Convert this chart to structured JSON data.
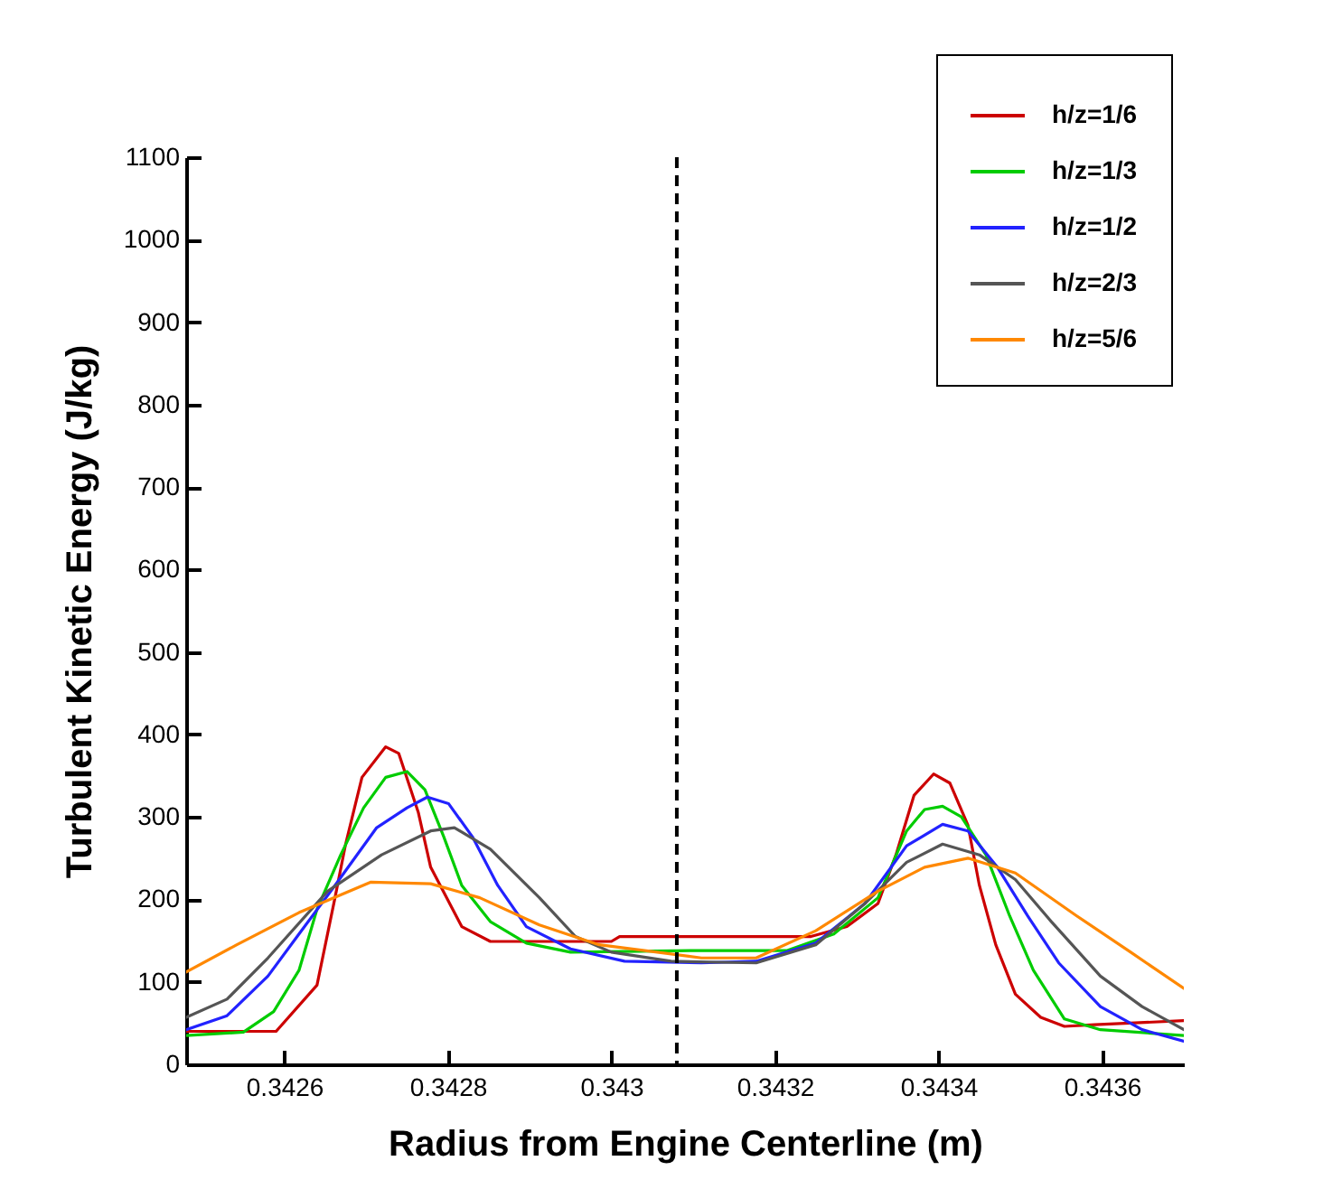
{
  "chart_data": {
    "type": "line",
    "xlabel": "Radius from Engine Centerline (m)",
    "ylabel": "Turbulent Kinetic Energy (J/kg)",
    "xlim": [
      0.34248,
      0.3437
    ],
    "ylim": [
      0,
      1100
    ],
    "xticks": [
      0.3426,
      0.3428,
      0.343,
      0.3432,
      0.3434,
      0.3436
    ],
    "yticks": [
      0,
      100,
      200,
      300,
      400,
      500,
      600,
      700,
      800,
      900,
      1000,
      1100
    ],
    "grid": false,
    "legend": "top right",
    "line_style": "solid",
    "marker": "none",
    "ref_lines": [
      {
        "axis": "x",
        "value": 0.34308,
        "line_style": "dashed",
        "color": "#000000"
      }
    ],
    "series": [
      {
        "name": "h/z=1/6",
        "color": "#cc0000",
        "x": [
          0.34248,
          0.34259,
          0.34264,
          0.342662,
          0.342675,
          0.342695,
          0.342724,
          0.34274,
          0.342764,
          0.342779,
          0.342817,
          0.342852,
          0.343,
          0.34301,
          0.343244,
          0.343288,
          0.343326,
          0.343348,
          0.34337,
          0.343394,
          0.343414,
          0.343436,
          0.34345,
          0.34347,
          0.343494,
          0.343525,
          0.343554,
          0.343591,
          0.3437
        ],
        "values": [
          40,
          40,
          96,
          202,
          267,
          348,
          385,
          377,
          305,
          239,
          167,
          149,
          149,
          155,
          155,
          167,
          195,
          254,
          326,
          352,
          341,
          290,
          217,
          145,
          85,
          57,
          46,
          48,
          53
        ]
      },
      {
        "name": "h/z=1/3",
        "color": "#00cc00",
        "x": [
          0.34248,
          0.34255,
          0.342587,
          0.342618,
          0.34264,
          0.342669,
          0.342697,
          0.342724,
          0.34275,
          0.342772,
          0.342795,
          0.342817,
          0.342852,
          0.342896,
          0.34295,
          0.34311,
          0.343215,
          0.343272,
          0.343326,
          0.343361,
          0.343383,
          0.343405,
          0.343428,
          0.343458,
          0.343487,
          0.343516,
          0.343554,
          0.343598,
          0.3437
        ],
        "values": [
          35,
          39,
          64,
          114,
          188,
          254,
          311,
          348,
          355,
          333,
          276,
          217,
          173,
          147,
          136,
          138,
          138,
          158,
          202,
          283,
          309,
          313,
          300,
          254,
          180,
          114,
          55,
          42,
          35
        ]
      },
      {
        "name": "h/z=1/2",
        "color": "#2222ff",
        "x": [
          0.34248,
          0.34253,
          0.34258,
          0.342618,
          0.342662,
          0.342713,
          0.34275,
          0.342775,
          0.342801,
          0.34283,
          0.342861,
          0.342896,
          0.34295,
          0.343016,
          0.34311,
          0.343177,
          0.34325,
          0.34331,
          0.343361,
          0.343405,
          0.343436,
          0.343472,
          0.343509,
          0.343547,
          0.343598,
          0.343649,
          0.3437
        ],
        "values": [
          42,
          59,
          107,
          158,
          217,
          287,
          311,
          324,
          316,
          276,
          217,
          167,
          140,
          125,
          123,
          125,
          147,
          195,
          265,
          291,
          283,
          239,
          180,
          123,
          70,
          42,
          28
        ]
      },
      {
        "name": "h/z=2/3",
        "color": "#555555",
        "x": [
          0.34248,
          0.34253,
          0.34258,
          0.342653,
          0.342719,
          0.342779,
          0.342808,
          0.342852,
          0.342912,
          0.342956,
          0.343,
          0.343073,
          0.343177,
          0.34325,
          0.34331,
          0.343361,
          0.343405,
          0.34345,
          0.343494,
          0.343538,
          0.343598,
          0.343649,
          0.3437
        ],
        "values": [
          57,
          79,
          129,
          210,
          254,
          283,
          287,
          261,
          202,
          155,
          136,
          125,
          123,
          145,
          195,
          245,
          267,
          254,
          224,
          173,
          107,
          70,
          42
        ]
      },
      {
        "name": "h/z=5/6",
        "color": "#ff8800",
        "x": [
          0.34248,
          0.342542,
          0.342618,
          0.342706,
          0.342779,
          0.342839,
          0.342912,
          0.342985,
          0.34311,
          0.343177,
          0.34325,
          0.343326,
          0.343383,
          0.343436,
          0.343494,
          0.343569,
          0.343635,
          0.3437
        ],
        "values": [
          112,
          145,
          184,
          221,
          219,
          202,
          169,
          145,
          129,
          129,
          162,
          210,
          239,
          250,
          232,
          180,
          136,
          92
        ]
      }
    ]
  }
}
